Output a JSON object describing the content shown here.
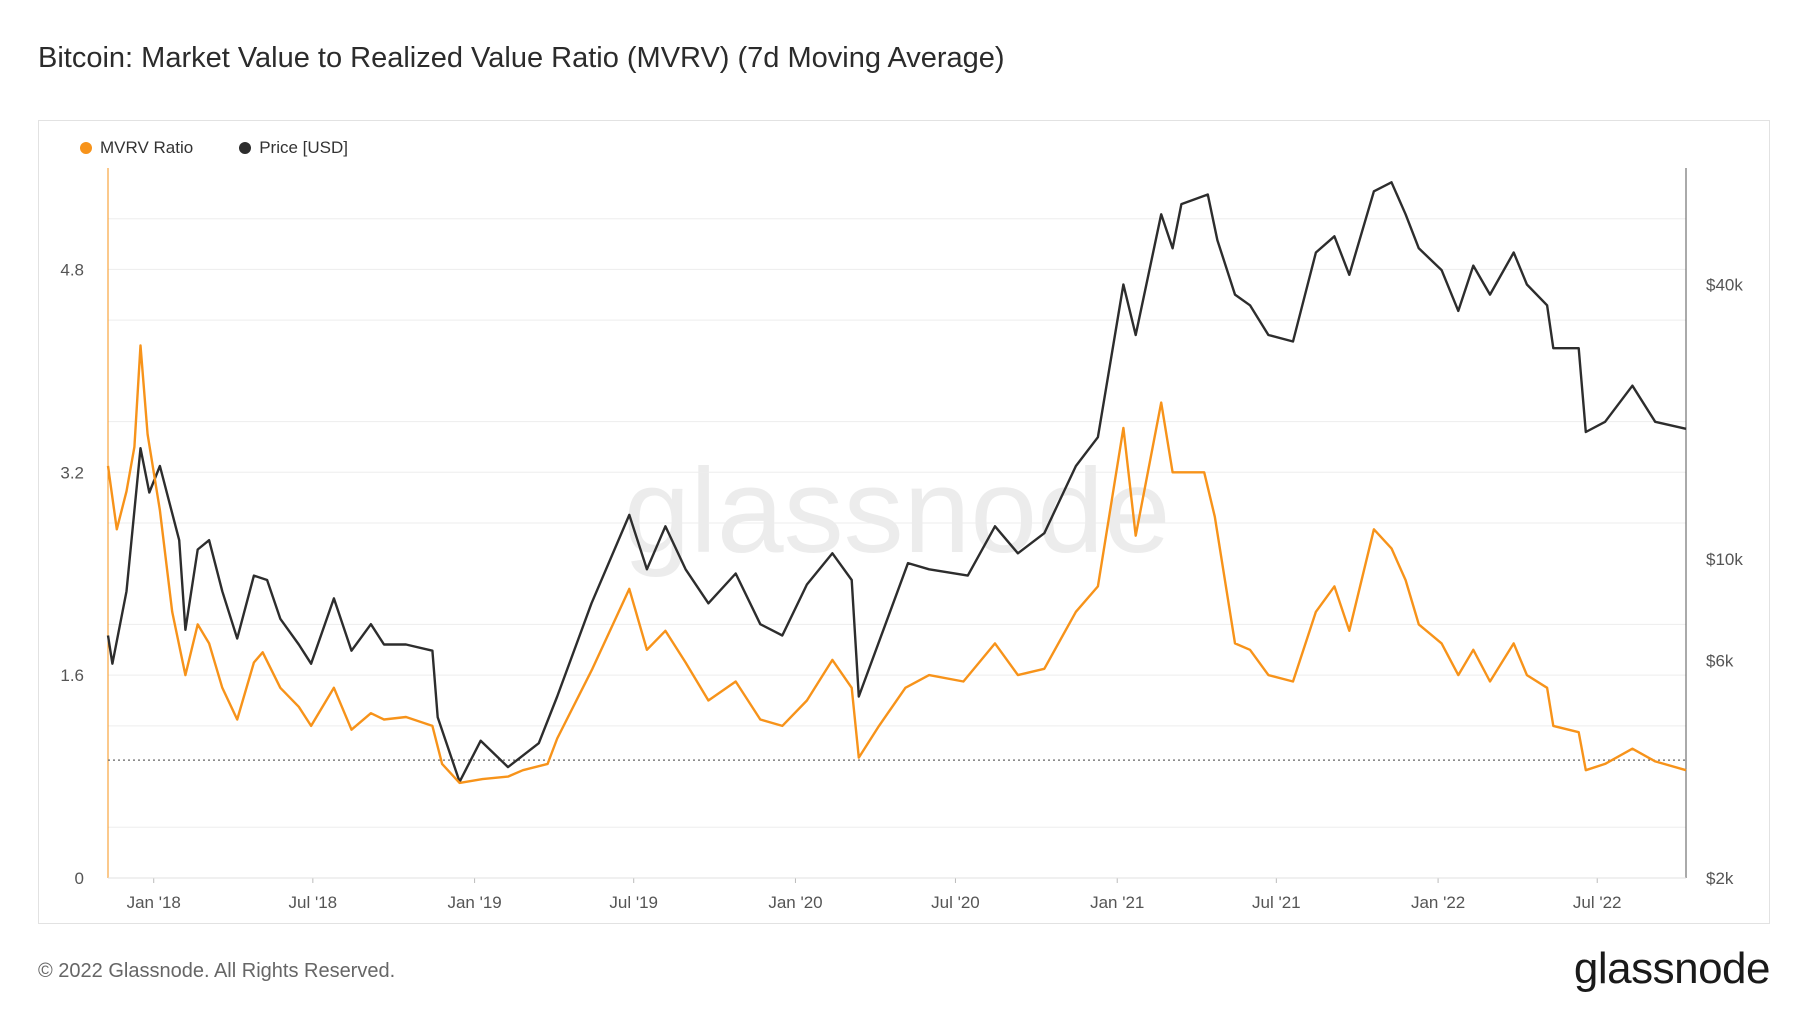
{
  "title": "Bitcoin: Market Value to Realized Value Ratio (MVRV) (7d Moving Average)",
  "footer": "© 2022 Glassnode. All Rights Reserved.",
  "brand": "glassnode",
  "watermark": "glassnode",
  "chart_data": {
    "type": "line",
    "grid": true,
    "legend_position": "top-left",
    "y_left": {
      "ticks": [
        0,
        1.6,
        3.2,
        4.8
      ],
      "labels": [
        "0",
        "1.6",
        "3.2",
        "4.8"
      ],
      "range": [
        0,
        5.6
      ]
    },
    "y_right": {
      "scale": "log",
      "ticks": [
        2000,
        6000,
        10000,
        40000
      ],
      "labels": [
        "$2k",
        "$6k",
        "$10k",
        "$40k"
      ],
      "range": [
        2000,
        72000
      ]
    },
    "x_ticks": [
      {
        "date": "2018-01-01",
        "label": "Jan '18"
      },
      {
        "date": "2018-07-01",
        "label": "Jul '18"
      },
      {
        "date": "2019-01-01",
        "label": "Jan '19"
      },
      {
        "date": "2019-07-01",
        "label": "Jul '19"
      },
      {
        "date": "2020-01-01",
        "label": "Jan '20"
      },
      {
        "date": "2020-07-01",
        "label": "Jul '20"
      },
      {
        "date": "2021-01-01",
        "label": "Jan '21"
      },
      {
        "date": "2021-07-01",
        "label": "Jul '21"
      },
      {
        "date": "2022-01-01",
        "label": "Jan '22"
      },
      {
        "date": "2022-07-01",
        "label": "Jul '22"
      }
    ],
    "x_range": [
      "2017-11-10",
      "2022-10-10"
    ],
    "reference_line": {
      "axis": "left",
      "value": 0.93
    },
    "series": [
      {
        "name": "MVRV Ratio",
        "axis": "left",
        "color": "#f7931a",
        "points": [
          [
            "2017-11-10",
            3.25
          ],
          [
            "2017-11-20",
            2.75
          ],
          [
            "2017-12-01",
            3.05
          ],
          [
            "2017-12-10",
            3.4
          ],
          [
            "2017-12-17",
            4.2
          ],
          [
            "2017-12-25",
            3.5
          ],
          [
            "2018-01-08",
            2.9
          ],
          [
            "2018-01-22",
            2.1
          ],
          [
            "2018-02-06",
            1.6
          ],
          [
            "2018-02-20",
            2.0
          ],
          [
            "2018-03-05",
            1.85
          ],
          [
            "2018-03-20",
            1.5
          ],
          [
            "2018-04-06",
            1.25
          ],
          [
            "2018-04-25",
            1.7
          ],
          [
            "2018-05-05",
            1.78
          ],
          [
            "2018-05-25",
            1.5
          ],
          [
            "2018-06-15",
            1.35
          ],
          [
            "2018-06-29",
            1.2
          ],
          [
            "2018-07-25",
            1.5
          ],
          [
            "2018-08-14",
            1.17
          ],
          [
            "2018-09-05",
            1.3
          ],
          [
            "2018-09-20",
            1.25
          ],
          [
            "2018-10-15",
            1.27
          ],
          [
            "2018-11-14",
            1.2
          ],
          [
            "2018-11-25",
            0.9
          ],
          [
            "2018-12-15",
            0.75
          ],
          [
            "2019-01-10",
            0.78
          ],
          [
            "2019-02-08",
            0.8
          ],
          [
            "2019-02-25",
            0.85
          ],
          [
            "2019-03-25",
            0.9
          ],
          [
            "2019-04-05",
            1.1
          ],
          [
            "2019-05-15",
            1.65
          ],
          [
            "2019-06-26",
            2.28
          ],
          [
            "2019-07-16",
            1.8
          ],
          [
            "2019-08-06",
            1.95
          ],
          [
            "2019-08-29",
            1.7
          ],
          [
            "2019-09-24",
            1.4
          ],
          [
            "2019-10-25",
            1.55
          ],
          [
            "2019-11-22",
            1.25
          ],
          [
            "2019-12-17",
            1.2
          ],
          [
            "2020-01-14",
            1.4
          ],
          [
            "2020-02-12",
            1.72
          ],
          [
            "2020-03-05",
            1.5
          ],
          [
            "2020-03-13",
            0.95
          ],
          [
            "2020-04-05",
            1.2
          ],
          [
            "2020-05-05",
            1.5
          ],
          [
            "2020-06-01",
            1.6
          ],
          [
            "2020-07-10",
            1.55
          ],
          [
            "2020-08-15",
            1.85
          ],
          [
            "2020-09-10",
            1.6
          ],
          [
            "2020-10-10",
            1.65
          ],
          [
            "2020-11-15",
            2.1
          ],
          [
            "2020-12-10",
            2.3
          ],
          [
            "2021-01-08",
            3.55
          ],
          [
            "2021-01-22",
            2.7
          ],
          [
            "2021-02-20",
            3.75
          ],
          [
            "2021-03-05",
            3.2
          ],
          [
            "2021-04-10",
            3.2
          ],
          [
            "2021-04-22",
            2.85
          ],
          [
            "2021-05-15",
            1.85
          ],
          [
            "2021-06-01",
            1.8
          ],
          [
            "2021-06-22",
            1.6
          ],
          [
            "2021-07-20",
            1.55
          ],
          [
            "2021-08-15",
            2.1
          ],
          [
            "2021-09-05",
            2.3
          ],
          [
            "2021-09-22",
            1.95
          ],
          [
            "2021-10-20",
            2.75
          ],
          [
            "2021-11-09",
            2.6
          ],
          [
            "2021-11-25",
            2.35
          ],
          [
            "2021-12-10",
            2.0
          ],
          [
            "2022-01-05",
            1.85
          ],
          [
            "2022-01-24",
            1.6
          ],
          [
            "2022-02-10",
            1.8
          ],
          [
            "2022-03-01",
            1.55
          ],
          [
            "2022-03-28",
            1.85
          ],
          [
            "2022-04-12",
            1.6
          ],
          [
            "2022-05-05",
            1.5
          ],
          [
            "2022-05-12",
            1.2
          ],
          [
            "2022-06-10",
            1.15
          ],
          [
            "2022-06-18",
            0.85
          ],
          [
            "2022-07-10",
            0.9
          ],
          [
            "2022-08-10",
            1.02
          ],
          [
            "2022-09-05",
            0.92
          ],
          [
            "2022-10-10",
            0.85
          ]
        ]
      },
      {
        "name": "Price [USD]",
        "axis": "right",
        "color": "#2d2d2d",
        "points": [
          [
            "2017-11-10",
            6800
          ],
          [
            "2017-11-15",
            5900
          ],
          [
            "2017-12-01",
            8500
          ],
          [
            "2017-12-17",
            17500
          ],
          [
            "2017-12-27",
            14000
          ],
          [
            "2018-01-08",
            16000
          ],
          [
            "2018-01-30",
            11000
          ],
          [
            "2018-02-06",
            7000
          ],
          [
            "2018-02-20",
            10500
          ],
          [
            "2018-03-05",
            11000
          ],
          [
            "2018-03-20",
            8500
          ],
          [
            "2018-04-06",
            6700
          ],
          [
            "2018-04-25",
            9200
          ],
          [
            "2018-05-10",
            9000
          ],
          [
            "2018-05-25",
            7400
          ],
          [
            "2018-06-15",
            6500
          ],
          [
            "2018-06-29",
            5900
          ],
          [
            "2018-07-25",
            8200
          ],
          [
            "2018-08-14",
            6300
          ],
          [
            "2018-09-05",
            7200
          ],
          [
            "2018-09-20",
            6500
          ],
          [
            "2018-10-15",
            6500
          ],
          [
            "2018-11-14",
            6300
          ],
          [
            "2018-11-20",
            4500
          ],
          [
            "2018-12-15",
            3250
          ],
          [
            "2019-01-08",
            4000
          ],
          [
            "2019-02-08",
            3500
          ],
          [
            "2019-03-15",
            3950
          ],
          [
            "2019-04-05",
            5000
          ],
          [
            "2019-05-14",
            8000
          ],
          [
            "2019-06-26",
            12500
          ],
          [
            "2019-07-16",
            9500
          ],
          [
            "2019-08-06",
            11800
          ],
          [
            "2019-08-29",
            9500
          ],
          [
            "2019-09-24",
            8000
          ],
          [
            "2019-10-25",
            9300
          ],
          [
            "2019-11-22",
            7200
          ],
          [
            "2019-12-17",
            6800
          ],
          [
            "2020-01-14",
            8800
          ],
          [
            "2020-02-12",
            10300
          ],
          [
            "2020-03-05",
            9000
          ],
          [
            "2020-03-13",
            5000
          ],
          [
            "2020-04-10",
            7000
          ],
          [
            "2020-05-08",
            9800
          ],
          [
            "2020-06-01",
            9500
          ],
          [
            "2020-07-15",
            9200
          ],
          [
            "2020-08-15",
            11800
          ],
          [
            "2020-09-10",
            10300
          ],
          [
            "2020-10-10",
            11400
          ],
          [
            "2020-11-15",
            16000
          ],
          [
            "2020-12-10",
            18500
          ],
          [
            "2021-01-08",
            40000
          ],
          [
            "2021-01-22",
            31000
          ],
          [
            "2021-02-20",
            57000
          ],
          [
            "2021-03-05",
            48000
          ],
          [
            "2021-03-15",
            60000
          ],
          [
            "2021-04-14",
            63000
          ],
          [
            "2021-04-25",
            50000
          ],
          [
            "2021-05-15",
            38000
          ],
          [
            "2021-06-01",
            36000
          ],
          [
            "2021-06-22",
            31000
          ],
          [
            "2021-07-20",
            30000
          ],
          [
            "2021-08-15",
            47000
          ],
          [
            "2021-09-05",
            51000
          ],
          [
            "2021-09-22",
            42000
          ],
          [
            "2021-10-20",
            64000
          ],
          [
            "2021-11-09",
            67000
          ],
          [
            "2021-11-25",
            57000
          ],
          [
            "2021-12-10",
            48000
          ],
          [
            "2022-01-05",
            43000
          ],
          [
            "2022-01-24",
            35000
          ],
          [
            "2022-02-10",
            44000
          ],
          [
            "2022-03-01",
            38000
          ],
          [
            "2022-03-28",
            47000
          ],
          [
            "2022-04-12",
            40000
          ],
          [
            "2022-05-05",
            36000
          ],
          [
            "2022-05-12",
            29000
          ],
          [
            "2022-06-10",
            29000
          ],
          [
            "2022-06-18",
            19000
          ],
          [
            "2022-07-10",
            20000
          ],
          [
            "2022-08-10",
            24000
          ],
          [
            "2022-09-05",
            20000
          ],
          [
            "2022-10-10",
            19300
          ]
        ]
      }
    ]
  }
}
